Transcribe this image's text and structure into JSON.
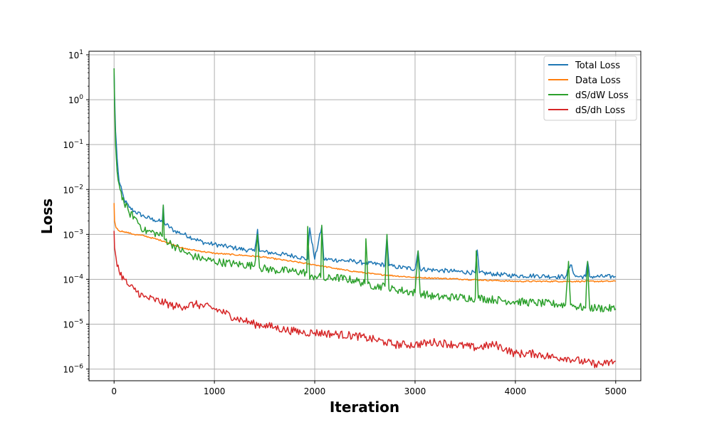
{
  "chart_data": {
    "type": "line",
    "xlabel": "Iteration",
    "ylabel": "Loss",
    "yscale": "log",
    "xlim": [
      -250,
      5250
    ],
    "ylim": [
      5.5e-07,
      12
    ],
    "xticks": [
      0,
      1000,
      2000,
      3000,
      4000,
      5000
    ],
    "xtick_labels": [
      "0",
      "1000",
      "2000",
      "3000",
      "4000",
      "5000"
    ],
    "yticks": [
      1e-06,
      1e-05,
      0.0001,
      0.001,
      0.01,
      0.1,
      1,
      10
    ],
    "ytick_exponents": [
      "−6",
      "−5",
      "−4",
      "−3",
      "−2",
      "−1",
      "0",
      "1"
    ],
    "ytick_base": "10",
    "grid": true,
    "legend_position": "upper right",
    "series": [
      {
        "name": "Total Loss",
        "color": "#1f77b4",
        "x": [
          0,
          5,
          15,
          30,
          50,
          100,
          150,
          200,
          300,
          400,
          480,
          490,
          500,
          600,
          700,
          800,
          900,
          1000,
          1200,
          1400,
          1430,
          1450,
          1600,
          1800,
          1930,
          1950,
          2000,
          2070,
          2090,
          2200,
          2400,
          2500,
          2700,
          2720,
          2740,
          2800,
          3000,
          3030,
          3050,
          3200,
          3400,
          3600,
          3620,
          3640,
          3800,
          4000,
          4200,
          4400,
          4500,
          4550,
          4600,
          4700,
          4720,
          4740,
          4800,
          5000
        ],
        "y": [
          5,
          1.2,
          0.2,
          0.05,
          0.015,
          0.006,
          0.004,
          0.0033,
          0.0025,
          0.0021,
          0.0019,
          0.0045,
          0.0018,
          0.0012,
          0.001,
          0.0008,
          0.00065,
          0.0006,
          0.0005,
          0.00042,
          0.0013,
          0.00042,
          0.00038,
          0.00033,
          0.00028,
          0.0014,
          0.00028,
          0.0015,
          0.00028,
          0.00027,
          0.00025,
          0.00023,
          0.00021,
          0.00095,
          0.0002,
          0.00019,
          0.00017,
          0.00043,
          0.00017,
          0.00016,
          0.00015,
          0.00014,
          0.00045,
          0.00014,
          0.00013,
          0.00012,
          0.00012,
          0.000115,
          0.000115,
          0.00021,
          0.000115,
          0.000115,
          0.00025,
          0.000115,
          0.000115,
          0.000115
        ]
      },
      {
        "name": "Data Loss",
        "color": "#ff7f0e",
        "x": [
          0,
          5,
          20,
          50,
          100,
          200,
          300,
          500,
          700,
          1000,
          1300,
          1500,
          2000,
          2300,
          2600,
          3000,
          3500,
          4000,
          4500,
          5000
        ],
        "y": [
          0.005,
          0.002,
          0.0014,
          0.0012,
          0.00115,
          0.001,
          0.00093,
          0.0007,
          0.00048,
          0.00038,
          0.00034,
          0.00031,
          0.00021,
          0.00016,
          0.00013,
          0.00011,
          0.0001,
          9e-05,
          9e-05,
          9e-05
        ]
      },
      {
        "name": "dS/dW Loss",
        "color": "#2ca02c",
        "x": [
          0,
          5,
          15,
          30,
          60,
          100,
          150,
          200,
          300,
          400,
          480,
          490,
          500,
          600,
          700,
          800,
          900,
          1000,
          1200,
          1400,
          1430,
          1450,
          1600,
          1800,
          1920,
          1930,
          1950,
          2000,
          2060,
          2070,
          2090,
          2200,
          2400,
          2500,
          2510,
          2530,
          2600,
          2700,
          2720,
          2740,
          2800,
          3000,
          3030,
          3050,
          3200,
          3400,
          3600,
          3610,
          3630,
          3800,
          4000,
          4200,
          4400,
          4500,
          4530,
          4550,
          4600,
          4700,
          4720,
          4740,
          4800,
          5000
        ],
        "y": [
          5,
          0.8,
          0.1,
          0.025,
          0.01,
          0.005,
          0.003,
          0.0025,
          0.0012,
          0.0011,
          0.0009,
          0.0045,
          0.0008,
          0.00055,
          0.0004,
          0.00032,
          0.00028,
          0.00025,
          0.00022,
          0.0002,
          0.001,
          0.00018,
          0.00016,
          0.00015,
          0.00014,
          0.0015,
          0.0001,
          0.00012,
          0.00011,
          0.0016,
          0.0001,
          0.00011,
          9.5e-05,
          8e-05,
          0.0008,
          8e-05,
          7e-05,
          7e-05,
          0.001,
          6e-05,
          6e-05,
          5e-05,
          0.00043,
          5e-05,
          4e-05,
          4e-05,
          3.8e-05,
          0.00043,
          3.8e-05,
          3.5e-05,
          3.2e-05,
          3e-05,
          2.8e-05,
          2.7e-05,
          0.00025,
          2.7e-05,
          2.5e-05,
          2.3e-05,
          0.00025,
          2.3e-05,
          2.3e-05,
          2.2e-05
        ]
      },
      {
        "name": "dS/dh Loss",
        "color": "#d62728",
        "x": [
          0,
          5,
          20,
          50,
          100,
          150,
          200,
          300,
          400,
          500,
          600,
          700,
          800,
          900,
          1000,
          1100,
          1200,
          1300,
          1400,
          1500,
          1600,
          1700,
          1800,
          1900,
          2000,
          2200,
          2400,
          2500,
          2600,
          2700,
          2800,
          2900,
          3000,
          3200,
          3400,
          3600,
          3800,
          3900,
          4000,
          4200,
          4400,
          4500,
          4600,
          4700,
          4800,
          4900,
          5000
        ],
        "y": [
          0.0012,
          0.0005,
          0.0003,
          0.00015,
          0.0001,
          7e-05,
          6e-05,
          4e-05,
          3.5e-05,
          3e-05,
          2.5e-05,
          2.5e-05,
          2.8e-05,
          2.5e-05,
          2.2e-05,
          1.8e-05,
          1.4e-05,
          1.2e-05,
          1e-05,
          9.5e-06,
          8.5e-06,
          7.5e-06,
          7e-06,
          6.5e-06,
          6.5e-06,
          6e-06,
          5.5e-06,
          5e-06,
          4.5e-06,
          4e-06,
          3.5e-06,
          3.5e-06,
          3.5e-06,
          4e-06,
          3.5e-06,
          3e-06,
          3.5e-06,
          2.8e-06,
          2.2e-06,
          2.2e-06,
          1.8e-06,
          1.8e-06,
          1.6e-06,
          1.4e-06,
          1.3e-06,
          1.3e-06,
          1.5e-06
        ]
      }
    ]
  }
}
